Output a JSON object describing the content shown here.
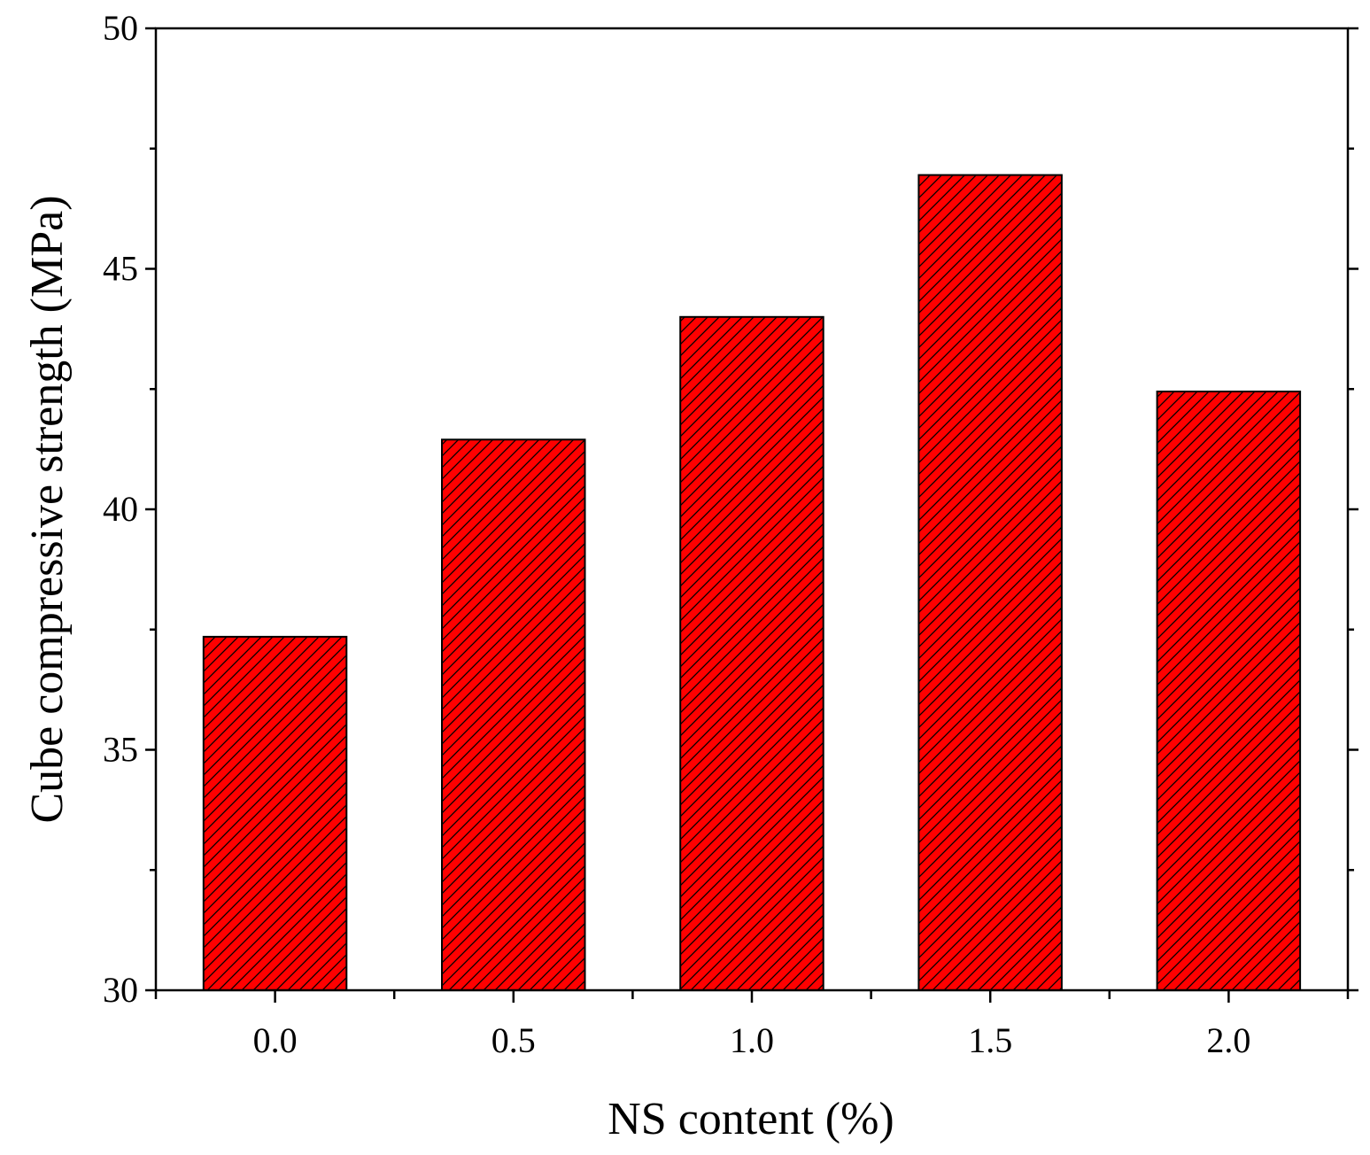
{
  "chart_data": {
    "type": "bar",
    "title": "",
    "xlabel": "NS content (%)",
    "ylabel": "Cube compressive strength (MPa)",
    "categories": [
      "0.0",
      "0.5",
      "1.0",
      "1.5",
      "2.0"
    ],
    "values": [
      37.35,
      41.45,
      44.0,
      46.95,
      42.45
    ],
    "ylim": [
      30,
      50
    ],
    "yticks": [
      "30",
      "35",
      "40",
      "45",
      "50"
    ],
    "grid": false,
    "legend": "none",
    "bar_color": "#ff0000",
    "bar_pattern": "diagonal-hatch",
    "hatch_color": "#000000",
    "axis_color": "#000000"
  }
}
